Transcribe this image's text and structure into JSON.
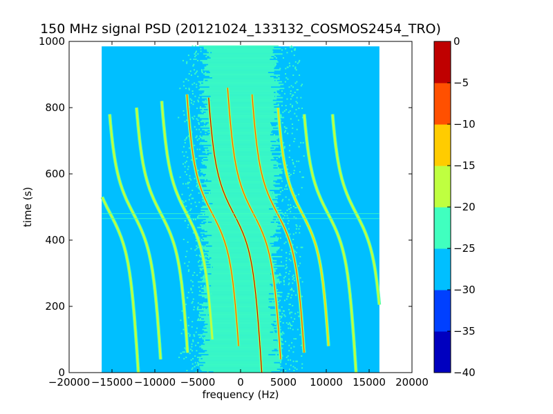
{
  "chart_data": {
    "type": "heatmap",
    "title": "150 MHz signal PSD (20121024_133132_COSMOS2454_TRO)",
    "xlabel": "frequency (Hz)",
    "ylabel": "time (s)",
    "xlim": [
      -20000,
      20000
    ],
    "ylim": [
      0,
      1000
    ],
    "x_ticks": [
      -20000,
      -15000,
      -10000,
      -5000,
      0,
      5000,
      10000,
      15000,
      20000
    ],
    "x_tick_labels": [
      "−20000",
      "−15000",
      "−10000",
      "−5000",
      "0",
      "5000",
      "10000",
      "15000",
      "20000"
    ],
    "y_ticks": [
      0,
      200,
      400,
      600,
      800,
      1000
    ],
    "y_tick_labels": [
      "0",
      "200",
      "400",
      "600",
      "800",
      "1000"
    ],
    "data_extent": {
      "x": [
        -16200,
        16200
      ],
      "y": [
        0,
        985
      ]
    },
    "background_level": -27.5,
    "band": {
      "center_hz": 0,
      "half_width_hz": 4500,
      "level": -22.5
    },
    "horizontal_gap_times_s": [
      465,
      480
    ],
    "traces": [
      {
        "freq_at_480s": -800,
        "start_s": 0,
        "end_s": 830,
        "peak_level": -2.5
      },
      {
        "freq_at_480s": 1500,
        "start_s": 40,
        "end_s": 860,
        "peak_level": -7.5
      },
      {
        "freq_at_480s": -3300,
        "start_s": 80,
        "end_s": 840,
        "peak_level": -7.5
      },
      {
        "freq_at_480s": 4300,
        "start_s": 60,
        "end_s": 840,
        "peak_level": -7.5
      },
      {
        "freq_at_480s": 7200,
        "start_s": 80,
        "end_s": 800,
        "peak_level": -12.5
      },
      {
        "freq_at_480s": -6300,
        "start_s": 100,
        "end_s": 820,
        "peak_level": -17.5
      },
      {
        "freq_at_480s": 10200,
        "start_s": 0,
        "end_s": 780,
        "peak_level": -17.5
      },
      {
        "freq_at_480s": -9300,
        "start_s": 60,
        "end_s": 800,
        "peak_level": -17.5
      },
      {
        "freq_at_480s": 13500,
        "start_s": 0,
        "end_s": 780,
        "peak_level": -17.5
      },
      {
        "freq_at_480s": -12500,
        "start_s": 40,
        "end_s": 780,
        "peak_level": -17.5
      },
      {
        "freq_at_480s": -15200,
        "start_s": 0,
        "end_s": 800,
        "peak_level": -17.5
      }
    ],
    "colorbar": {
      "levels": [
        -40,
        -35,
        -30,
        -25,
        -20,
        -15,
        -10,
        -5,
        0
      ],
      "tick_labels": [
        "−40",
        "−35",
        "−30",
        "−25",
        "−20",
        "−15",
        "−10",
        "−5",
        "0"
      ],
      "colors": [
        "#0000bf",
        "#0040ff",
        "#00bfff",
        "#40ffbf",
        "#bfff40",
        "#ffcc00",
        "#ff5000",
        "#bf0000"
      ]
    },
    "grid": false
  }
}
